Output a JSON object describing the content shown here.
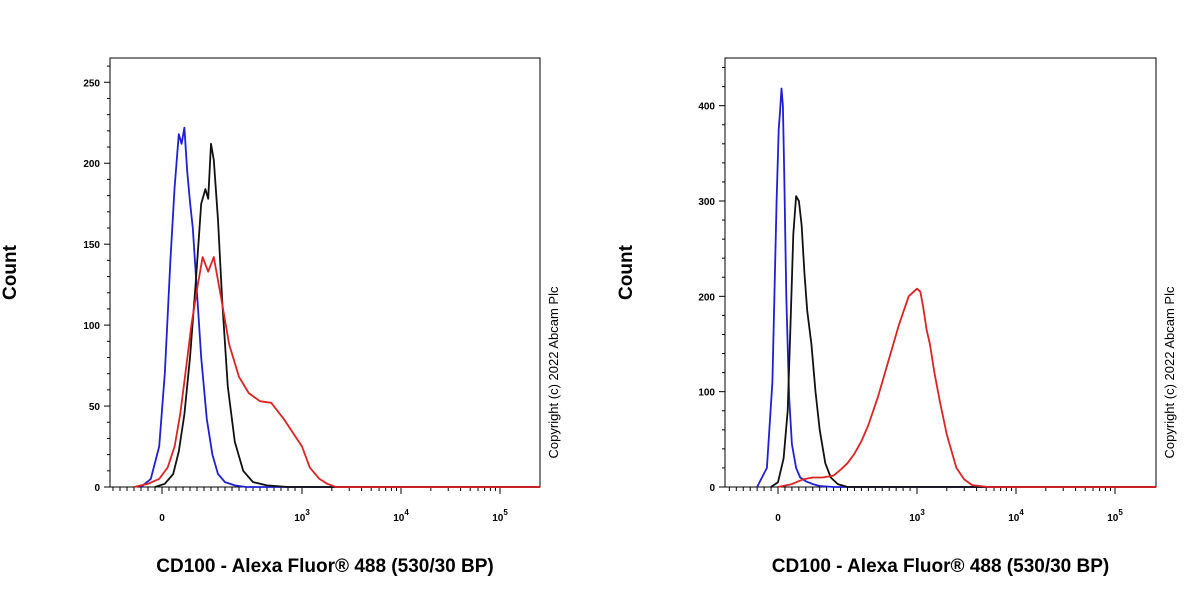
{
  "chart_data": [
    {
      "type": "line",
      "title": "",
      "xlabel": "CD100 - Alexa Fluor® 488 (530/30 BP)",
      "ylabel": "Count",
      "x_scale": "biexponential",
      "xlim": [
        -500,
        150000
      ],
      "ylim": [
        0,
        265
      ],
      "y_ticks": [
        0,
        50,
        100,
        150,
        200,
        250
      ],
      "x_ticks": [
        {
          "value": 0,
          "base": "0",
          "exp": ""
        },
        {
          "value": 1000,
          "base": "10",
          "exp": "3"
        },
        {
          "value": 10000,
          "base": "10",
          "exp": "4"
        },
        {
          "value": 100000,
          "base": "10",
          "exp": "5"
        }
      ],
      "grid": false,
      "copyright": "Copyright (c) 2022 Abcam Plc",
      "series": [
        {
          "color": "#1f1fd6",
          "x": [
            -150,
            -80,
            -20,
            20,
            60,
            90,
            120,
            140,
            160,
            180,
            200,
            220,
            250,
            280,
            320,
            360,
            400,
            450,
            520,
            600
          ],
          "values": [
            0,
            5,
            25,
            70,
            140,
            185,
            218,
            212,
            222,
            195,
            176,
            160,
            120,
            80,
            42,
            20,
            8,
            3,
            1,
            0
          ]
        },
        {
          "color": "#111111",
          "x": [
            -50,
            20,
            80,
            120,
            160,
            200,
            240,
            280,
            310,
            330,
            350,
            370,
            400,
            430,
            470,
            520,
            580,
            650,
            750,
            900
          ],
          "values": [
            0,
            2,
            8,
            22,
            45,
            80,
            125,
            175,
            184,
            178,
            212,
            202,
            165,
            115,
            62,
            28,
            10,
            3,
            1,
            0
          ]
        },
        {
          "color": "#dd2222",
          "x": [
            -200,
            -100,
            -20,
            40,
            90,
            130,
            170,
            210,
            250,
            290,
            330,
            370,
            420,
            480,
            550,
            620,
            700,
            780,
            870,
            1000,
            1200,
            1500,
            1800,
            2200
          ],
          "values": [
            0,
            2,
            5,
            12,
            25,
            45,
            72,
            100,
            122,
            142,
            133,
            142,
            118,
            88,
            68,
            58,
            53,
            52,
            42,
            25,
            12,
            5,
            2,
            0
          ]
        }
      ]
    },
    {
      "type": "line",
      "title": "",
      "xlabel": "CD100 - Alexa Fluor® 488 (530/30 BP)",
      "ylabel": "Count",
      "x_scale": "biexponential",
      "xlim": [
        -500,
        150000
      ],
      "ylim": [
        0,
        450
      ],
      "y_ticks": [
        0,
        100,
        200,
        300,
        400
      ],
      "x_ticks": [
        {
          "value": 0,
          "base": "0",
          "exp": ""
        },
        {
          "value": 1000,
          "base": "10",
          "exp": "3"
        },
        {
          "value": 10000,
          "base": "10",
          "exp": "4"
        },
        {
          "value": 100000,
          "base": "10",
          "exp": "5"
        }
      ],
      "grid": false,
      "copyright": "Copyright (c) 2022 Abcam Plc",
      "series": [
        {
          "color": "#1f1fd6",
          "x": [
            -150,
            -80,
            -40,
            -10,
            5,
            15,
            25,
            35,
            45,
            60,
            80,
            100,
            130,
            160,
            200,
            250,
            300,
            400
          ],
          "values": [
            0,
            20,
            110,
            300,
            375,
            395,
            418,
            400,
            325,
            200,
            95,
            45,
            20,
            10,
            6,
            3,
            1,
            0
          ]
        },
        {
          "color": "#111111",
          "x": [
            -50,
            0,
            40,
            70,
            90,
            110,
            130,
            150,
            170,
            190,
            210,
            240,
            270,
            300,
            340,
            380,
            430,
            500
          ],
          "values": [
            0,
            5,
            30,
            80,
            170,
            265,
            305,
            300,
            275,
            225,
            185,
            150,
            100,
            60,
            25,
            10,
            3,
            0
          ]
        },
        {
          "color": "#dd2222",
          "x": [
            0,
            100,
            180,
            250,
            320,
            400,
            450,
            500,
            550,
            600,
            650,
            720,
            800,
            870,
            940,
            1000,
            1080,
            1150,
            1250,
            1350,
            1500,
            1700,
            2000,
            2500,
            3000,
            3600,
            4300,
            5200
          ],
          "values": [
            0,
            3,
            8,
            10,
            10,
            12,
            18,
            25,
            35,
            48,
            65,
            95,
            135,
            170,
            200,
            208,
            205,
            190,
            165,
            150,
            120,
            90,
            55,
            20,
            8,
            2,
            1,
            0
          ]
        }
      ]
    }
  ]
}
